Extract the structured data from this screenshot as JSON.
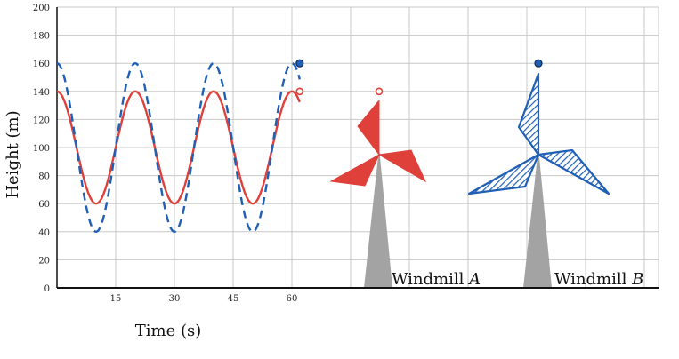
{
  "chart_data": {
    "type": "line",
    "xlabel": "Time (s)",
    "ylabel": "Height (m)",
    "xlim": [
      0,
      155
    ],
    "ylim": [
      0,
      200
    ],
    "x_ticks": [
      15,
      30,
      45,
      60
    ],
    "y_ticks": [
      0,
      20,
      40,
      60,
      80,
      100,
      120,
      140,
      160,
      180,
      200
    ],
    "grid": true,
    "series": [
      {
        "label": "Windmill A",
        "style": "solid",
        "color": "#e0403a",
        "center": 100,
        "amplitude": 40,
        "period": 20,
        "x_range": [
          0,
          62
        ],
        "endpoint": {
          "x": 62,
          "y": 140
        }
      },
      {
        "label": "Windmill B",
        "style": "dashed",
        "color": "#1f5fb5",
        "center": 100,
        "amplitude": 60,
        "period": 20,
        "x_range": [
          0,
          62
        ],
        "endpoint": {
          "x": 62,
          "y": 160
        }
      }
    ]
  },
  "windmills": [
    {
      "label": "Windmill",
      "variable": "A",
      "color": "#e0403a",
      "fill": "solid"
    },
    {
      "label": "Windmill",
      "variable": "B",
      "color": "#1f5fb5",
      "fill": "hatched"
    }
  ],
  "colors": {
    "grid": "#c8c8c8",
    "axis": "#111111",
    "tower": "#a3a3a3",
    "red": "#e0403a",
    "blue": "#1f5fb5"
  }
}
